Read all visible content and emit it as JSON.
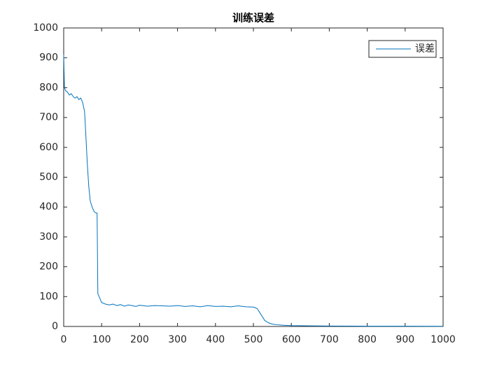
{
  "chart_data": {
    "type": "line",
    "title": "训练误差",
    "x": [
      0,
      2,
      5,
      10,
      15,
      20,
      25,
      30,
      35,
      40,
      45,
      50,
      55,
      58,
      62,
      66,
      70,
      75,
      80,
      85,
      88,
      90,
      95,
      100,
      110,
      120,
      130,
      140,
      150,
      160,
      170,
      180,
      190,
      200,
      220,
      240,
      260,
      280,
      300,
      320,
      340,
      360,
      380,
      400,
      420,
      440,
      460,
      480,
      500,
      510,
      520,
      530,
      540,
      550,
      560,
      580,
      600,
      650,
      700,
      800,
      900,
      1000
    ],
    "series": [
      {
        "name": "误差",
        "color": "#0072bd",
        "values": [
          910,
          800,
          790,
          785,
          775,
          780,
          770,
          765,
          770,
          760,
          765,
          750,
          720,
          650,
          550,
          470,
          420,
          400,
          385,
          380,
          380,
          110,
          95,
          80,
          75,
          72,
          75,
          70,
          73,
          68,
          72,
          70,
          67,
          71,
          68,
          70,
          69,
          68,
          70,
          67,
          69,
          66,
          70,
          67,
          68,
          66,
          69,
          66,
          65,
          60,
          40,
          20,
          12,
          8,
          6,
          4,
          3,
          2,
          1.5,
          1,
          0.8,
          0.5
        ]
      }
    ],
    "xlim": [
      0,
      1000
    ],
    "xticks": [
      0,
      100,
      200,
      300,
      400,
      500,
      600,
      700,
      800,
      900,
      1000
    ],
    "ylim": [
      0,
      1000
    ],
    "yticks": [
      0,
      100,
      200,
      300,
      400,
      500,
      600,
      700,
      800,
      900,
      1000
    ],
    "grid": false,
    "legend": "northeast"
  }
}
